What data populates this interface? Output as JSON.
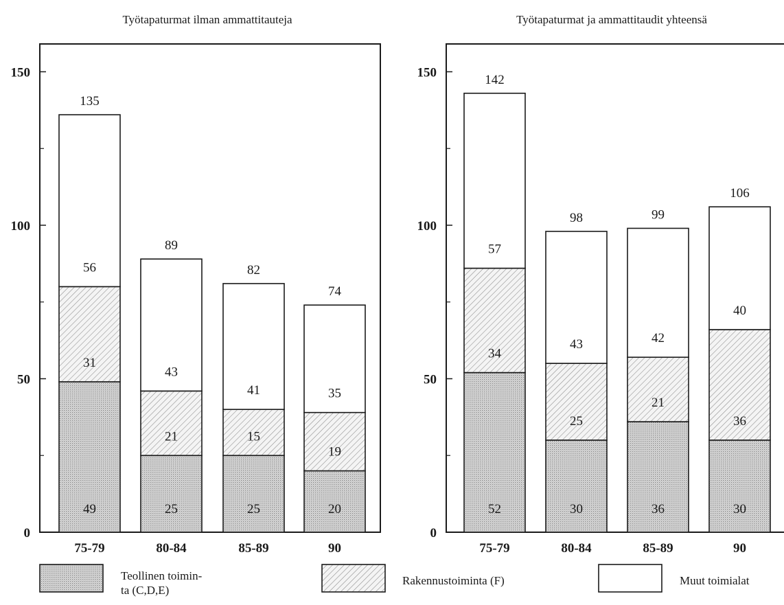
{
  "chart_data": [
    {
      "type": "bar",
      "stacked": true,
      "title": "Työtapaturmat ilman ammattitauteja",
      "categories": [
        "75-79",
        "80-84",
        "85-89",
        "90"
      ],
      "ylim": [
        0,
        160
      ],
      "yticks": [
        0,
        50,
        100,
        150
      ],
      "series": [
        {
          "name": "Teollinen toiminta (C,D,E)",
          "values": [
            49,
            25,
            25,
            20
          ]
        },
        {
          "name": "Rakennustoiminta (F)",
          "values": [
            31,
            21,
            15,
            19
          ]
        },
        {
          "name": "Muut toimialat",
          "values": [
            56,
            43,
            41,
            35
          ]
        }
      ],
      "totals": [
        135,
        89,
        82,
        74
      ]
    },
    {
      "type": "bar",
      "stacked": true,
      "title": "Työtapaturmat ja ammattitaudit yhteensä",
      "categories": [
        "75-79",
        "80-84",
        "85-89",
        "90"
      ],
      "ylim": [
        0,
        160
      ],
      "yticks": [
        0,
        50,
        100,
        150
      ],
      "series": [
        {
          "name": "Teollinen toiminta (C,D,E)",
          "values": [
            52,
            30,
            36,
            30
          ]
        },
        {
          "name": "Rakennustoiminta (F)",
          "values": [
            34,
            25,
            21,
            36
          ]
        },
        {
          "name": "Muut toimialat",
          "values": [
            57,
            43,
            42,
            40
          ]
        }
      ],
      "totals": [
        142,
        98,
        99,
        106
      ]
    }
  ],
  "legend": {
    "items": [
      {
        "line1": "Teollinen toimin-",
        "line2": "ta (C,D,E)",
        "pattern": "dots"
      },
      {
        "line1": "Rakennustoiminta (F)",
        "line2": "",
        "pattern": "hatch"
      },
      {
        "line1": "Muut toimialat",
        "line2": "",
        "pattern": "white"
      }
    ]
  },
  "colors": {
    "ink": "#1a1a1a",
    "dots": "#a8a8a8",
    "hatch": "#6e6e6e"
  }
}
